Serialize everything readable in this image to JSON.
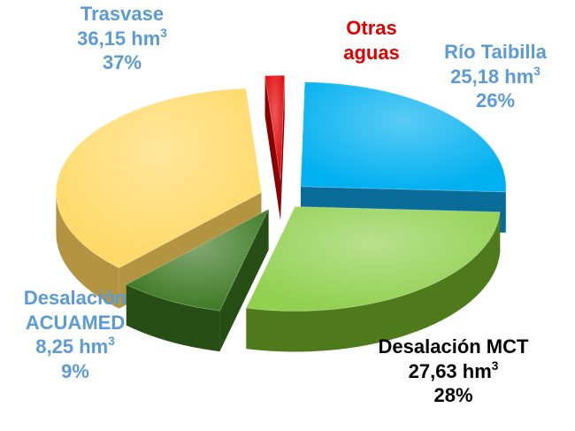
{
  "chart_data": {
    "type": "pie",
    "title": "",
    "unit": "hm",
    "unit_sup": "3",
    "slices": [
      {
        "key": "taibilla",
        "label": "Río Taibilla",
        "value": 25.18,
        "value_text": "25,18",
        "percent_text": "26%",
        "color": "#00B0F0",
        "dark": "#0A6D99",
        "label_color": "#5B9BD5"
      },
      {
        "key": "mct",
        "label": "Desalación MCT",
        "value": 27.63,
        "value_text": "27,63",
        "percent_text": "28%",
        "color": "#92D050",
        "dark": "#4E7A1C",
        "label_color": "#000000"
      },
      {
        "key": "acuamed",
        "label": "Desalación ACUAMED",
        "label_lines": [
          "Desalación",
          "ACUAMED"
        ],
        "value": 8.25,
        "value_text": "8,25",
        "percent_text": "9%",
        "color": "#3F7A25",
        "dark": "#264D14",
        "label_color": "#5B9BD5"
      },
      {
        "key": "trasvase",
        "label": "Trasvase",
        "value": 36.15,
        "value_text": "36,15",
        "percent_text": "37%",
        "color": "#FFD966",
        "dark": "#B39440",
        "label_color": "#5B9BD5"
      },
      {
        "key": "otras",
        "label": "Otras aguas",
        "label_lines": [
          "Otras",
          "aguas"
        ],
        "value": 1.5,
        "color": "#E00000",
        "dark": "#8B0000",
        "label_color": "#E00000"
      }
    ]
  }
}
